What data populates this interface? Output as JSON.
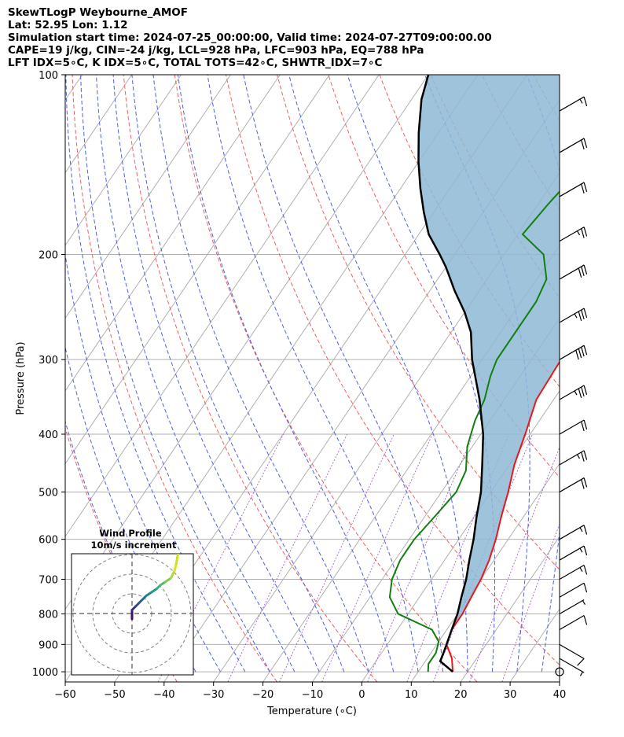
{
  "header": {
    "line1": "SkewTLogP Weybourne_AMOF",
    "line2": "Lat: 52.95   Lon: 1.12",
    "line3": "Simulation start time: 2024-07-25_00:00:00, Valid time: 2024-07-27T09:00:00.00",
    "line4": "CAPE=19 j/kg, CIN=-24 j/kg, LCL=928 hPa, LFC=903 hPa, EQ=788 hPa",
    "line5": "LFT IDX=5∘C, K IDX=5∘C, TOTAL TOTS=42∘C, SHWTR_IDX=7∘C"
  },
  "chart_data": {
    "type": "skewt-logp",
    "xlabel": "Temperature (∘C)",
    "ylabel": "Pressure (hPa)",
    "xlim": [
      -60,
      40
    ],
    "ylim": [
      1040,
      100
    ],
    "x_ticks": [
      "−60",
      "−50",
      "−40",
      "−30",
      "−20",
      "−10",
      "0",
      "10",
      "20",
      "30",
      "40"
    ],
    "x_tick_values": [
      -60,
      -50,
      -40,
      -30,
      -20,
      -10,
      0,
      10,
      20,
      30,
      40
    ],
    "y_ticks": [
      "100",
      "200",
      "300",
      "400",
      "500",
      "600",
      "700",
      "800",
      "900",
      "1000"
    ],
    "y_tick_values": [
      100,
      200,
      300,
      400,
      500,
      600,
      700,
      800,
      900,
      1000
    ],
    "grid": true,
    "series": [
      {
        "key": "temperature",
        "color": "#e8161b",
        "points": [
          [
            17,
            1000
          ],
          [
            15,
            950
          ],
          [
            12,
            900
          ],
          [
            11,
            850
          ],
          [
            11,
            800
          ],
          [
            10.5,
            750
          ],
          [
            10,
            700
          ],
          [
            9,
            650
          ],
          [
            7.5,
            600
          ],
          [
            5.5,
            550
          ],
          [
            3.5,
            500
          ],
          [
            1,
            450
          ],
          [
            -1,
            400
          ],
          [
            -3.5,
            350
          ],
          [
            -4,
            300
          ],
          [
            -4,
            275
          ],
          [
            -4,
            250
          ],
          [
            -2,
            220
          ],
          [
            -1,
            200
          ],
          [
            1,
            180
          ],
          [
            2,
            170
          ],
          [
            4,
            150
          ],
          [
            5,
            140
          ],
          [
            7,
            125
          ],
          [
            9,
            115
          ],
          [
            11,
            100
          ]
        ]
      },
      {
        "key": "dewpoint",
        "color": "#10800f",
        "points": [
          [
            12,
            1000
          ],
          [
            11,
            970
          ],
          [
            11,
            930
          ],
          [
            10,
            890
          ],
          [
            7,
            850
          ],
          [
            -2,
            800
          ],
          [
            -6,
            750
          ],
          [
            -8,
            700
          ],
          [
            -9,
            650
          ],
          [
            -9,
            600
          ],
          [
            -8,
            550
          ],
          [
            -7,
            500
          ],
          [
            -8,
            460
          ],
          [
            -11,
            420
          ],
          [
            -13,
            380
          ],
          [
            -14,
            350
          ],
          [
            -16,
            320
          ],
          [
            -17,
            300
          ],
          [
            -17,
            270
          ],
          [
            -17,
            240
          ],
          [
            -18,
            220
          ],
          [
            -22,
            200
          ],
          [
            -29,
            185
          ],
          [
            -28,
            165
          ],
          [
            -26,
            140
          ],
          [
            -24,
            120
          ],
          [
            -22,
            100
          ]
        ]
      },
      {
        "key": "parcel",
        "color": "#000000",
        "points": [
          [
            17,
            1000
          ],
          [
            13,
            960
          ],
          [
            12.5,
            928
          ],
          [
            11,
            850
          ],
          [
            10,
            800
          ],
          [
            8.5,
            750
          ],
          [
            7,
            700
          ],
          [
            5,
            650
          ],
          [
            3,
            600
          ],
          [
            0.5,
            550
          ],
          [
            -2,
            500
          ],
          [
            -5.5,
            450
          ],
          [
            -9.5,
            400
          ],
          [
            -15,
            350
          ],
          [
            -22,
            300
          ],
          [
            -26,
            270
          ],
          [
            -30,
            250
          ],
          [
            -35,
            230
          ],
          [
            -40,
            210
          ],
          [
            -43,
            200
          ],
          [
            -48,
            185
          ],
          [
            -52,
            170
          ],
          [
            -56,
            155
          ],
          [
            -60,
            140
          ],
          [
            -64,
            125
          ],
          [
            -68,
            110
          ],
          [
            -70,
            100
          ]
        ]
      }
    ],
    "shading": {
      "label": "CAPE area",
      "color": "#8fb8d6"
    },
    "wind_barbs": [
      {
        "p": 1000,
        "speed_kt": 0,
        "dir": 0
      },
      {
        "p": 950,
        "speed_kt": 5,
        "dir": 300
      },
      {
        "p": 900,
        "speed_kt": 10,
        "dir": 300
      },
      {
        "p": 850,
        "speed_kt": 10,
        "dir": 240
      },
      {
        "p": 800,
        "speed_kt": 5,
        "dir": 240
      },
      {
        "p": 750,
        "speed_kt": 10,
        "dir": 240
      },
      {
        "p": 700,
        "speed_kt": 15,
        "dir": 240
      },
      {
        "p": 650,
        "speed_kt": 15,
        "dir": 240
      },
      {
        "p": 600,
        "speed_kt": 15,
        "dir": 240
      },
      {
        "p": 500,
        "speed_kt": 20,
        "dir": 240
      },
      {
        "p": 450,
        "speed_kt": 25,
        "dir": 240
      },
      {
        "p": 400,
        "speed_kt": 20,
        "dir": 240
      },
      {
        "p": 350,
        "speed_kt": 35,
        "dir": 240
      },
      {
        "p": 300,
        "speed_kt": 40,
        "dir": 240
      },
      {
        "p": 260,
        "speed_kt": 35,
        "dir": 240
      },
      {
        "p": 220,
        "speed_kt": 30,
        "dir": 240
      },
      {
        "p": 190,
        "speed_kt": 25,
        "dir": 240
      },
      {
        "p": 160,
        "speed_kt": 20,
        "dir": 240
      },
      {
        "p": 135,
        "speed_kt": 20,
        "dir": 240
      },
      {
        "p": 115,
        "speed_kt": 15,
        "dir": 240
      }
    ],
    "inset": {
      "title": "Wind Profile",
      "subtitle": "10m/s increment",
      "ring_step_ms": 10,
      "hodograph": [
        [
          0,
          -3
        ],
        [
          0,
          2
        ],
        [
          2,
          4
        ],
        [
          4,
          6
        ],
        [
          6,
          8
        ],
        [
          8,
          10
        ],
        [
          11,
          12
        ],
        [
          14,
          14
        ],
        [
          16,
          16
        ],
        [
          19,
          18
        ],
        [
          22,
          20
        ],
        [
          24,
          24
        ],
        [
          25,
          28
        ],
        [
          26,
          34
        ]
      ]
    }
  }
}
